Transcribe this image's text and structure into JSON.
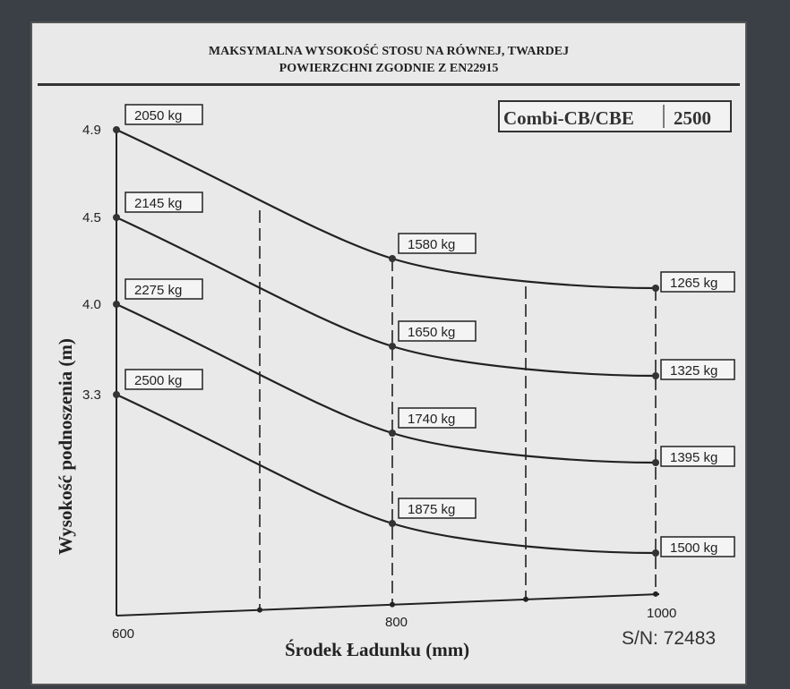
{
  "header": {
    "title_line1": "MAKSYMALNA WYSOKOŚĆ STOSU NA RÓWNEJ, TWARDEJ",
    "title_line2": "POWIERZCHNI ZGODNIE Z EN22915"
  },
  "model": {
    "name": "Combi-CB/CBE",
    "capacity": "2500"
  },
  "serial": "S/N: 72483",
  "chart_data": {
    "type": "line",
    "title": "MAKSYMALNA WYSOKOŚĆ STOSU NA RÓWNEJ, TWARDEJ POWIERZCHNI ZGODNIE Z EN22915",
    "xlabel": "Środek Ładunku (mm)",
    "ylabel": "Wysokość podnoszenia (m)",
    "x": [
      600,
      800,
      1000
    ],
    "x_ticks": [
      "600",
      "800",
      "1000"
    ],
    "y_ticks": [
      "4.9",
      "4.5",
      "4.0",
      "3.3"
    ],
    "grid": "dashed vertical lines",
    "series": [
      {
        "height": "4.9",
        "loads": [
          "2050 kg",
          "1580 kg",
          "1265 kg"
        ]
      },
      {
        "height": "4.5",
        "loads": [
          "2145 kg",
          "1650 kg",
          "1325 kg"
        ]
      },
      {
        "height": "4.0",
        "loads": [
          "2275 kg",
          "1740 kg",
          "1395 kg"
        ]
      },
      {
        "height": "3.3",
        "loads": [
          "2500 kg",
          "1875 kg",
          "1500 kg"
        ]
      }
    ]
  }
}
